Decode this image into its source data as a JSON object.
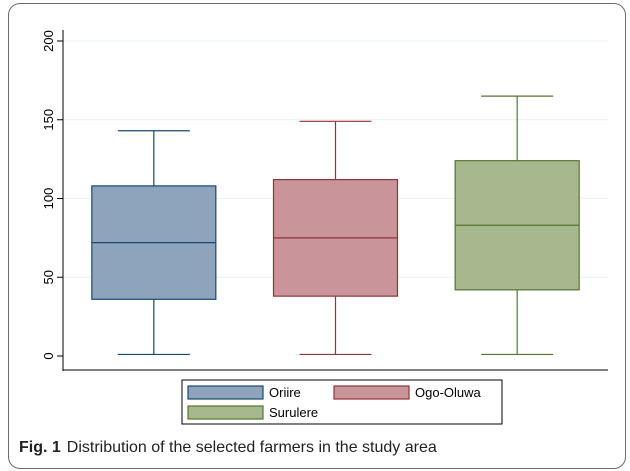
{
  "chart_data": {
    "type": "box",
    "title": "",
    "xlabel": "",
    "ylabel": "",
    "ylim": [
      0,
      200
    ],
    "yticks": [
      "0",
      "50",
      "100",
      "150",
      "200"
    ],
    "ytick_values": [
      0,
      50,
      100,
      150,
      200
    ],
    "grid": true,
    "legend_position": "bottom",
    "series": [
      {
        "name": "Oriire",
        "min": 1,
        "q1": 36,
        "median": 72,
        "q3": 108,
        "max": 143,
        "fill": "#8ea4bd",
        "stroke": "#1a476f"
      },
      {
        "name": "Ogo-Oluwa",
        "min": 1,
        "q1": 38,
        "median": 75,
        "q3": 112,
        "max": 149,
        "fill": "#c9959a",
        "stroke": "#90353b"
      },
      {
        "name": "Surulere",
        "min": 1,
        "q1": 42,
        "median": 83,
        "q3": 124,
        "max": 165,
        "fill": "#a7b88e",
        "stroke": "#55752f"
      }
    ]
  },
  "caption": {
    "label": "Fig. 1",
    "text": "Distribution of the selected farmers in the study area"
  }
}
